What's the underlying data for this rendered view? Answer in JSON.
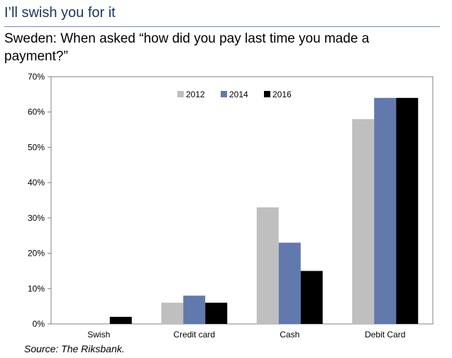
{
  "header": {
    "title": "I’ll swish you for it",
    "subtitle": "Sweden: When asked “how did you pay last time you made a payment?”"
  },
  "footer": {
    "source": "Source: The Riksbank."
  },
  "chart_data": {
    "type": "bar",
    "categories": [
      "Swish",
      "Credit card",
      "Cash",
      "Debit Card"
    ],
    "series": [
      {
        "name": "2012",
        "color": "#bfbfbf",
        "values": [
          0,
          6,
          33,
          58
        ]
      },
      {
        "name": "2014",
        "color": "#6279ad",
        "values": [
          0,
          8,
          23,
          64
        ]
      },
      {
        "name": "2016",
        "color": "#000000",
        "values": [
          2,
          6,
          15,
          64
        ]
      }
    ],
    "ylim": [
      0,
      70
    ],
    "yticks": [
      0,
      10,
      20,
      30,
      40,
      50,
      60,
      70
    ],
    "ytick_labels": [
      "0%",
      "10%",
      "20%",
      "30%",
      "40%",
      "50%",
      "60%",
      "70%"
    ],
    "legend_position": "top-center",
    "grid": false
  }
}
